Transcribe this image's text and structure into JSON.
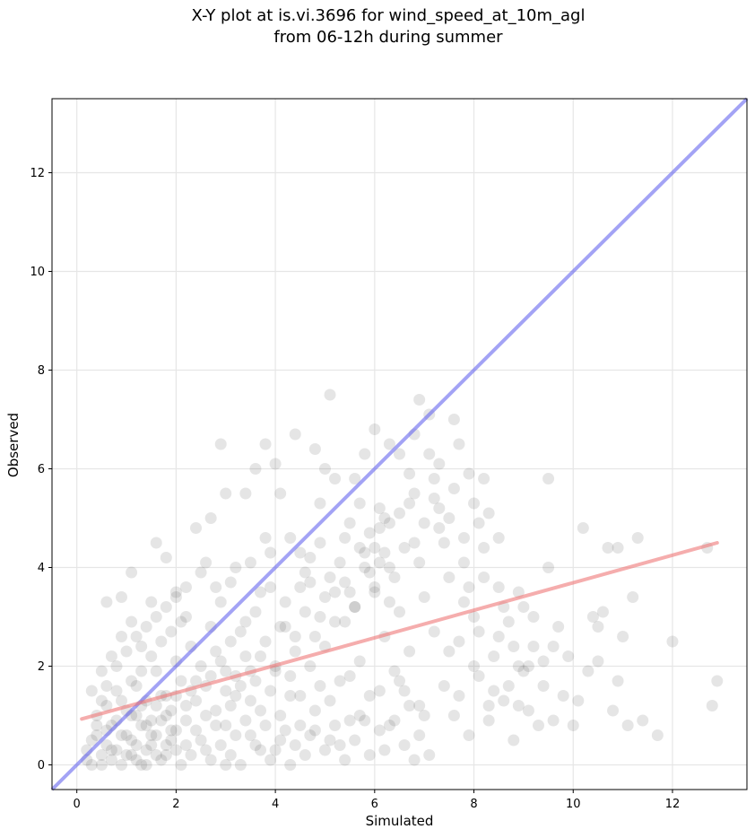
{
  "chart_data": {
    "type": "scatter",
    "title": "X-Y plot at is.vi.3696 for wind_speed_at_10m_agl",
    "subtitle": "from 06-12h during summer",
    "xlabel": "Simulated",
    "ylabel": "Observed",
    "xlim": [
      -0.5,
      13.5
    ],
    "ylim": [
      -0.5,
      13.5
    ],
    "x_ticks": [
      0,
      2,
      4,
      6,
      8,
      10,
      12
    ],
    "y_ticks": [
      0,
      2,
      4,
      6,
      8,
      10,
      12
    ],
    "grid": true,
    "point_color": "#333333",
    "one_to_one_line": {
      "color": "#6666ee",
      "x": [
        -0.5,
        13.5
      ],
      "y": [
        -0.5,
        13.5
      ]
    },
    "fit_line": {
      "color": "#ee7777",
      "x": [
        0.1,
        12.9
      ],
      "y": [
        0.93,
        4.5
      ]
    },
    "points": [
      [
        0.5,
        0.2
      ],
      [
        0.6,
        0.4
      ],
      [
        0.7,
        0.1
      ],
      [
        0.8,
        0.3
      ],
      [
        0.9,
        0.6
      ],
      [
        1.0,
        0.2
      ],
      [
        1.1,
        0.5
      ],
      [
        1.2,
        0.1
      ],
      [
        1.3,
        0.8
      ],
      [
        1.4,
        0.3
      ],
      [
        1.5,
        0.6
      ],
      [
        1.6,
        0.2
      ],
      [
        1.7,
        0.9
      ],
      [
        1.8,
        0.4
      ],
      [
        1.9,
        0.7
      ],
      [
        2.0,
        0.3
      ],
      [
        0.4,
        1.0
      ],
      [
        0.6,
        1.2
      ],
      [
        0.8,
        1.5
      ],
      [
        1.0,
        1.1
      ],
      [
        1.2,
        1.6
      ],
      [
        1.4,
        1.3
      ],
      [
        1.6,
        1.9
      ],
      [
        1.8,
        1.4
      ],
      [
        2.0,
        2.1
      ],
      [
        2.2,
        1.2
      ],
      [
        2.4,
        1.7
      ],
      [
        2.6,
        1.0
      ],
      [
        2.8,
        2.3
      ],
      [
        3.0,
        1.5
      ],
      [
        0.3,
        0.5
      ],
      [
        0.2,
        0.1
      ],
      [
        0.4,
        0.8
      ],
      [
        0.3,
        1.5
      ],
      [
        0.5,
        1.9
      ],
      [
        0.7,
        2.2
      ],
      [
        0.9,
        2.6
      ],
      [
        1.1,
        2.9
      ],
      [
        1.3,
        2.4
      ],
      [
        1.5,
        3.3
      ],
      [
        0.6,
        3.3
      ],
      [
        0.9,
        3.4
      ],
      [
        1.1,
        3.9
      ],
      [
        1.8,
        4.2
      ],
      [
        1.6,
        4.5
      ],
      [
        2.0,
        3.5
      ],
      [
        2.2,
        3.0
      ],
      [
        2.4,
        4.8
      ],
      [
        2.6,
        4.1
      ],
      [
        2.7,
        5.0
      ],
      [
        2.8,
        3.6
      ],
      [
        3.0,
        5.5
      ],
      [
        3.2,
        4.0
      ],
      [
        3.4,
        5.5
      ],
      [
        3.6,
        6.0
      ],
      [
        3.8,
        4.6
      ],
      [
        4.0,
        6.1
      ],
      [
        2.9,
        6.5
      ],
      [
        3.8,
        6.5
      ],
      [
        4.4,
        6.7
      ],
      [
        4.1,
        5.5
      ],
      [
        4.3,
        4.6
      ],
      [
        4.5,
        3.6
      ],
      [
        4.7,
        4.2
      ],
      [
        4.9,
        5.3
      ],
      [
        5.1,
        7.5
      ],
      [
        5.0,
        6.0
      ],
      [
        5.2,
        5.8
      ],
      [
        5.4,
        4.6
      ],
      [
        4.8,
        6.4
      ],
      [
        5.6,
        5.8
      ],
      [
        5.8,
        6.3
      ],
      [
        6.0,
        6.8
      ],
      [
        6.1,
        5.2
      ],
      [
        6.3,
        6.5
      ],
      [
        6.5,
        6.3
      ],
      [
        6.7,
        5.3
      ],
      [
        6.8,
        6.7
      ],
      [
        6.9,
        7.4
      ],
      [
        7.1,
        7.1
      ],
      [
        7.2,
        5.8
      ],
      [
        7.3,
        6.1
      ],
      [
        7.5,
        5.0
      ],
      [
        7.6,
        7.0
      ],
      [
        7.7,
        6.5
      ],
      [
        7.9,
        5.9
      ],
      [
        8.1,
        4.9
      ],
      [
        8.3,
        5.1
      ],
      [
        8.5,
        4.6
      ],
      [
        8.2,
        5.8
      ],
      [
        3.1,
        2.5
      ],
      [
        3.2,
        1.8
      ],
      [
        3.4,
        2.9
      ],
      [
        3.5,
        1.3
      ],
      [
        3.6,
        3.1
      ],
      [
        3.7,
        2.2
      ],
      [
        3.9,
        3.6
      ],
      [
        4.0,
        1.9
      ],
      [
        4.1,
        2.8
      ],
      [
        4.2,
        3.3
      ],
      [
        4.3,
        1.4
      ],
      [
        4.4,
        2.6
      ],
      [
        4.5,
        0.8
      ],
      [
        4.6,
        3.9
      ],
      [
        4.7,
        2.0
      ],
      [
        4.8,
        1.1
      ],
      [
        4.9,
        3.0
      ],
      [
        5.0,
        2.4
      ],
      [
        5.1,
        0.5
      ],
      [
        5.2,
        3.5
      ],
      [
        5.3,
        1.7
      ],
      [
        5.4,
        2.9
      ],
      [
        5.5,
        0.9
      ],
      [
        5.6,
        3.2
      ],
      [
        5.7,
        2.1
      ],
      [
        5.8,
        4.3
      ],
      [
        5.9,
        1.4
      ],
      [
        6.0,
        3.6
      ],
      [
        6.1,
        0.7
      ],
      [
        6.2,
        2.6
      ],
      [
        6.3,
        4.0
      ],
      [
        6.4,
        1.9
      ],
      [
        6.5,
        3.1
      ],
      [
        6.6,
        0.4
      ],
      [
        6.7,
        2.3
      ],
      [
        6.8,
        4.5
      ],
      [
        6.9,
        1.2
      ],
      [
        7.0,
        3.4
      ],
      [
        7.1,
        0.2
      ],
      [
        7.2,
        2.7
      ],
      [
        7.3,
        4.8
      ],
      [
        7.4,
        1.6
      ],
      [
        7.5,
        3.8
      ],
      [
        7.6,
        1.0
      ],
      [
        7.7,
        2.5
      ],
      [
        7.8,
        4.1
      ],
      [
        7.9,
        0.6
      ],
      [
        8.0,
        3.0
      ],
      [
        8.1,
        1.8
      ],
      [
        8.2,
        4.4
      ],
      [
        8.3,
        0.9
      ],
      [
        8.4,
        2.2
      ],
      [
        8.5,
        3.6
      ],
      [
        8.6,
        1.3
      ],
      [
        8.7,
        2.9
      ],
      [
        8.8,
        0.5
      ],
      [
        8.9,
        2.0
      ],
      [
        9.0,
        3.2
      ],
      [
        9.1,
        1.1
      ],
      [
        9.2,
        2.4
      ],
      [
        9.4,
        1.6
      ],
      [
        9.5,
        4.0
      ],
      [
        9.6,
        0.9
      ],
      [
        9.7,
        2.8
      ],
      [
        9.8,
        1.4
      ],
      [
        9.9,
        2.2
      ],
      [
        10.0,
        0.8
      ],
      [
        10.1,
        1.3
      ],
      [
        10.2,
        4.8
      ],
      [
        10.3,
        1.9
      ],
      [
        10.4,
        3.0
      ],
      [
        10.5,
        2.1
      ],
      [
        10.6,
        3.1
      ],
      [
        10.7,
        4.4
      ],
      [
        10.8,
        1.1
      ],
      [
        10.9,
        4.4
      ],
      [
        11.0,
        2.6
      ],
      [
        11.1,
        0.8
      ],
      [
        11.2,
        3.4
      ],
      [
        11.3,
        4.6
      ],
      [
        11.4,
        0.9
      ],
      [
        11.7,
        0.6
      ],
      [
        12.0,
        2.5
      ],
      [
        12.7,
        4.4
      ],
      [
        12.8,
        1.2
      ],
      [
        12.9,
        1.7
      ],
      [
        9.5,
        5.8
      ],
      [
        10.5,
        2.8
      ],
      [
        10.9,
        1.7
      ],
      [
        8.9,
        1.2
      ],
      [
        0.5,
        0.0
      ],
      [
        0.7,
        0.3
      ],
      [
        0.9,
        0.0
      ],
      [
        1.1,
        0.2
      ],
      [
        1.3,
        0.0
      ],
      [
        1.5,
        0.4
      ],
      [
        1.7,
        0.1
      ],
      [
        1.9,
        0.5
      ],
      [
        2.1,
        0.0
      ],
      [
        2.3,
        0.2
      ],
      [
        2.5,
        0.5
      ],
      [
        2.7,
        0.1
      ],
      [
        2.9,
        0.4
      ],
      [
        3.1,
        0.2
      ],
      [
        3.3,
        0.0
      ],
      [
        3.5,
        0.6
      ],
      [
        3.7,
        0.3
      ],
      [
        3.9,
        0.1
      ],
      [
        4.1,
        0.5
      ],
      [
        4.3,
        0.0
      ],
      [
        0.6,
        0.7
      ],
      [
        0.8,
        0.9
      ],
      [
        1.0,
        0.6
      ],
      [
        1.2,
        1.0
      ],
      [
        1.4,
        0.8
      ],
      [
        1.6,
        1.2
      ],
      [
        1.8,
        1.0
      ],
      [
        2.0,
        1.4
      ],
      [
        2.2,
        0.9
      ],
      [
        2.4,
        1.3
      ],
      [
        2.6,
        1.6
      ],
      [
        2.8,
        1.1
      ],
      [
        3.0,
        1.9
      ],
      [
        3.2,
        1.4
      ],
      [
        3.4,
        2.2
      ],
      [
        3.6,
        1.7
      ],
      [
        3.8,
        2.5
      ],
      [
        4.0,
        2.0
      ],
      [
        4.2,
        2.8
      ],
      [
        4.4,
        2.3
      ],
      [
        4.6,
        3.1
      ],
      [
        4.8,
        2.6
      ],
      [
        5.0,
        3.4
      ],
      [
        5.2,
        2.9
      ],
      [
        5.4,
        3.7
      ],
      [
        5.6,
        3.2
      ],
      [
        5.8,
        4.0
      ],
      [
        6.0,
        3.5
      ],
      [
        6.2,
        4.3
      ],
      [
        6.4,
        3.8
      ],
      [
        0.2,
        0.3
      ],
      [
        0.3,
        0.0
      ],
      [
        0.4,
        0.6
      ],
      [
        0.5,
        1.3
      ],
      [
        0.6,
        1.6
      ],
      [
        0.7,
        0.8
      ],
      [
        0.8,
        2.0
      ],
      [
        0.9,
        1.3
      ],
      [
        1.0,
        2.3
      ],
      [
        1.1,
        1.7
      ],
      [
        1.2,
        2.6
      ],
      [
        1.3,
        1.9
      ],
      [
        1.4,
        2.8
      ],
      [
        1.5,
        2.2
      ],
      [
        1.6,
        3.0
      ],
      [
        1.7,
        2.5
      ],
      [
        1.8,
        3.2
      ],
      [
        1.9,
        2.7
      ],
      [
        2.0,
        3.4
      ],
      [
        2.1,
        2.9
      ],
      [
        2.2,
        3.6
      ],
      [
        2.3,
        2.4
      ],
      [
        2.5,
        3.9
      ],
      [
        2.7,
        2.8
      ],
      [
        2.9,
        3.3
      ],
      [
        3.1,
        3.7
      ],
      [
        3.3,
        2.7
      ],
      [
        3.5,
        4.1
      ],
      [
        3.7,
        3.5
      ],
      [
        3.9,
        4.3
      ],
      [
        1.1,
        1.0
      ],
      [
        1.3,
        1.2
      ],
      [
        1.5,
        0.9
      ],
      [
        1.7,
        1.4
      ],
      [
        1.9,
        1.1
      ],
      [
        2.1,
        1.7
      ],
      [
        2.3,
        1.5
      ],
      [
        2.5,
        2.0
      ],
      [
        2.7,
        1.8
      ],
      [
        2.9,
        2.1
      ],
      [
        3.1,
        1.2
      ],
      [
        3.3,
        1.6
      ],
      [
        3.5,
        1.9
      ],
      [
        3.7,
        1.1
      ],
      [
        3.9,
        1.5
      ],
      [
        4.1,
        1.0
      ],
      [
        4.3,
        1.8
      ],
      [
        4.5,
        1.4
      ],
      [
        4.7,
        0.6
      ],
      [
        4.9,
        1.6
      ],
      [
        5.1,
        1.3
      ],
      [
        5.3,
        0.4
      ],
      [
        5.5,
        1.8
      ],
      [
        5.7,
        1.0
      ],
      [
        5.9,
        0.2
      ],
      [
        6.1,
        1.5
      ],
      [
        6.3,
        0.8
      ],
      [
        6.5,
        1.7
      ],
      [
        6.7,
        1.2
      ],
      [
        6.9,
        0.6
      ],
      [
        3.0,
        0.8
      ],
      [
        3.2,
        0.6
      ],
      [
        3.4,
        0.9
      ],
      [
        3.6,
        0.4
      ],
      [
        3.8,
        0.8
      ],
      [
        4.0,
        0.3
      ],
      [
        4.2,
        0.7
      ],
      [
        4.4,
        0.4
      ],
      [
        4.6,
        0.2
      ],
      [
        4.8,
        0.7
      ],
      [
        5.0,
        0.3
      ],
      [
        5.2,
        0.8
      ],
      [
        5.4,
        0.1
      ],
      [
        5.6,
        0.5
      ],
      [
        5.8,
        0.9
      ],
      [
        6.2,
        0.3
      ],
      [
        6.4,
        0.9
      ],
      [
        6.6,
        1.5
      ],
      [
        6.8,
        0.1
      ],
      [
        7.0,
        1.0
      ],
      [
        5.5,
        4.9
      ],
      [
        5.7,
        5.3
      ],
      [
        5.9,
        4.7
      ],
      [
        6.1,
        4.1
      ],
      [
        6.3,
        4.9
      ],
      [
        6.5,
        5.1
      ],
      [
        6.6,
        4.4
      ],
      [
        6.8,
        5.5
      ],
      [
        7.0,
        4.9
      ],
      [
        7.2,
        5.4
      ],
      [
        7.4,
        4.5
      ],
      [
        7.6,
        5.6
      ],
      [
        7.8,
        4.6
      ],
      [
        8.0,
        5.3
      ],
      [
        7.1,
        6.3
      ],
      [
        7.3,
        5.2
      ],
      [
        6.9,
        4.1
      ],
      [
        6.7,
        5.9
      ],
      [
        6.2,
        5.0
      ],
      [
        6.0,
        4.4
      ],
      [
        7.8,
        3.3
      ],
      [
        8.0,
        2.0
      ],
      [
        8.2,
        3.8
      ],
      [
        8.4,
        1.5
      ],
      [
        8.6,
        3.2
      ],
      [
        8.8,
        2.4
      ],
      [
        9.0,
        1.9
      ],
      [
        9.2,
        3.0
      ],
      [
        9.4,
        2.1
      ],
      [
        9.6,
        2.4
      ],
      [
        7.5,
        2.3
      ],
      [
        7.7,
        1.4
      ],
      [
        7.9,
        3.6
      ],
      [
        8.1,
        2.7
      ],
      [
        8.3,
        1.2
      ],
      [
        8.5,
        2.6
      ],
      [
        8.7,
        1.6
      ],
      [
        8.9,
        3.5
      ],
      [
        9.1,
        2.0
      ],
      [
        9.3,
        0.8
      ],
      [
        4.5,
        4.3
      ],
      [
        4.7,
        3.7
      ],
      [
        4.9,
        4.5
      ],
      [
        5.1,
        3.8
      ],
      [
        5.3,
        4.1
      ],
      [
        5.5,
        3.5
      ],
      [
        5.7,
        4.4
      ],
      [
        5.9,
        3.9
      ],
      [
        6.1,
        4.8
      ],
      [
        6.3,
        3.3
      ],
      [
        2.4,
        0.7
      ],
      [
        2.6,
        0.3
      ],
      [
        2.8,
        0.8
      ],
      [
        3.0,
        0.0
      ],
      [
        2.2,
        0.4
      ],
      [
        2.0,
        0.7
      ],
      [
        1.8,
        0.2
      ],
      [
        1.6,
        0.6
      ],
      [
        1.4,
        0.0
      ],
      [
        1.2,
        0.4
      ]
    ]
  }
}
